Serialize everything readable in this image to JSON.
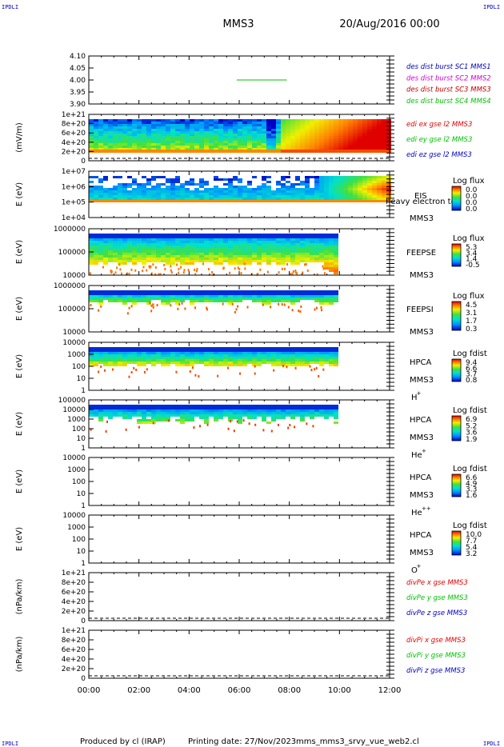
{
  "corner_marks": [
    "IPDLI",
    "IPDLI",
    "IPDLI",
    "IPDLI"
  ],
  "header": {
    "spacecraft": "MMS3",
    "date": "20/Aug/2016 00:00"
  },
  "footer": {
    "produced_by": "Produced by cl (IRAP)",
    "printing_date": "Printing date: 27/Nov/2023",
    "filename": "mms_mms3_srvy_vue_web2.cl"
  },
  "time_axis": {
    "ticks": [
      "00:00",
      "02:00",
      "04:00",
      "06:00",
      "08:00",
      "10:00",
      "12:00"
    ],
    "range_hours": [
      0,
      12
    ]
  },
  "colors": {
    "red": "#e00000",
    "green": "#00c000",
    "blue": "#0000c0",
    "magenta": "#d000d0",
    "darkred": "#c00000"
  },
  "chart_data": [
    {
      "type": "line",
      "panel": "des dist burst",
      "yticks": [
        "4.10",
        "4.05",
        "4.00",
        "3.95",
        "3.90"
      ],
      "ylim": [
        3.9,
        4.1
      ],
      "legend": [
        {
          "label": "des dist burst SC1 MMS1",
          "color": "#0000c0"
        },
        {
          "label": "des dist burst SC2 MMS2",
          "color": "#d000d0"
        },
        {
          "label": "des dist burst SC3 MMS3",
          "color": "#c00000"
        },
        {
          "label": "des dist burst SC4 MMS4",
          "color": "#00c000"
        }
      ],
      "series": [
        {
          "name": "des dist burst SC4 MMS4",
          "x": [
            5.9,
            7.9
          ],
          "y": [
            4.0,
            4.0
          ]
        }
      ]
    },
    {
      "type": "line",
      "panel": "edi",
      "ylabel": "(mV/m)",
      "yticks": [
        "1e+21",
        "8e+20",
        "6e+20",
        "4e+20",
        "2e+20",
        "0"
      ],
      "legend": [
        {
          "label": "edi ex gse l2 MMS3",
          "color": "#e00000"
        },
        {
          "label": "edi ey gse l2 MMS3",
          "color": "#00c000"
        },
        {
          "label": "edi ez gse l2 MMS3",
          "color": "#0000c0"
        }
      ]
    },
    {
      "type": "heatmap",
      "panel": "EIS",
      "ylabel": "E (eV)",
      "yticks": [
        "1e+07",
        "1e+06",
        "1e+05",
        "1e+04"
      ],
      "side_labels": [
        "EIS",
        "MMS3"
      ],
      "overlap_text": "heavy electron to",
      "colorbar": {
        "title": "Log flux",
        "ticks": [
          "0.0",
          "0.0",
          "0.0",
          "0.0"
        ]
      }
    },
    {
      "type": "heatmap",
      "panel": "FEEPSE",
      "ylabel": "E (eV)",
      "yticks": [
        "1000000",
        "100000",
        "10000"
      ],
      "side_labels": [
        "FEEPSE",
        "MMS3"
      ],
      "colorbar": {
        "title": "Log flux",
        "ticks": [
          "5.3",
          "3.4",
          "1.4",
          "-0.5"
        ]
      }
    },
    {
      "type": "heatmap",
      "panel": "FEEPSI",
      "ylabel": "E (eV)",
      "yticks": [
        "1000000",
        "100000",
        "10000"
      ],
      "side_labels": [
        "FEEPSI",
        "MMS3"
      ],
      "colorbar": {
        "title": "Log flux",
        "ticks": [
          "4.5",
          "3.1",
          "1.7",
          "0.3"
        ]
      }
    },
    {
      "type": "heatmap",
      "panel": "HPCA H+",
      "ylabel": "E (eV)",
      "yticks": [
        "10000",
        "1000",
        "100",
        "10",
        "1"
      ],
      "side_labels": [
        "HPCA",
        "MMS3",
        "H",
        "+"
      ],
      "colorbar": {
        "title": "Log fdist",
        "ticks": [
          "9.4",
          "6.6",
          "3.7",
          "0.8"
        ]
      }
    },
    {
      "type": "heatmap",
      "panel": "HPCA He+",
      "ylabel": "E (eV)",
      "yticks": [
        "100000",
        "10000",
        "1000",
        "100",
        "10",
        "1"
      ],
      "side_labels": [
        "HPCA",
        "MMS3",
        "He",
        "+"
      ],
      "colorbar": {
        "title": "Log fdist",
        "ticks": [
          "6.9",
          "5.2",
          "3.6",
          "1.9"
        ]
      }
    },
    {
      "type": "heatmap",
      "panel": "HPCA He++",
      "ylabel": "E (eV)",
      "yticks": [
        "10000",
        "1000",
        "100",
        "10",
        "1"
      ],
      "side_labels": [
        "HPCA",
        "MMS3",
        "He",
        "++"
      ],
      "colorbar": {
        "title": "Log fdist",
        "ticks": [
          "6.6",
          "4.9",
          "3.3",
          "1.6"
        ]
      }
    },
    {
      "type": "heatmap",
      "panel": "HPCA O+",
      "ylabel": "E (eV)",
      "yticks": [
        "10000",
        "1000",
        "100",
        "10",
        "1"
      ],
      "side_labels": [
        "HPCA",
        "MMS3",
        "O",
        "+"
      ],
      "colorbar": {
        "title": "Log fdist",
        "ticks": [
          "10.0",
          "7.7",
          "5.4",
          "3.2"
        ]
      }
    },
    {
      "type": "line",
      "panel": "divPe",
      "ylabel": "(nPa/km)",
      "yticks": [
        "1e+21",
        "8e+20",
        "6e+20",
        "4e+20",
        "2e+20",
        "0"
      ],
      "legend": [
        {
          "label": "divPe x gse MMS3",
          "color": "#e00000"
        },
        {
          "label": "divPe y gse MMS3",
          "color": "#00c000"
        },
        {
          "label": "divPe z gse MMS3",
          "color": "#0000c0"
        }
      ]
    },
    {
      "type": "line",
      "panel": "divPi",
      "ylabel": "(nPa/km)",
      "yticks": [
        "1e+21",
        "8e+20",
        "6e+20",
        "4e+20",
        "2e+20",
        "0"
      ],
      "legend": [
        {
          "label": "divPi x gse MMS3",
          "color": "#e00000"
        },
        {
          "label": "divPi y gse MMS3",
          "color": "#00c000"
        },
        {
          "label": "divPi z gse MMS3",
          "color": "#0000c0"
        }
      ]
    }
  ]
}
